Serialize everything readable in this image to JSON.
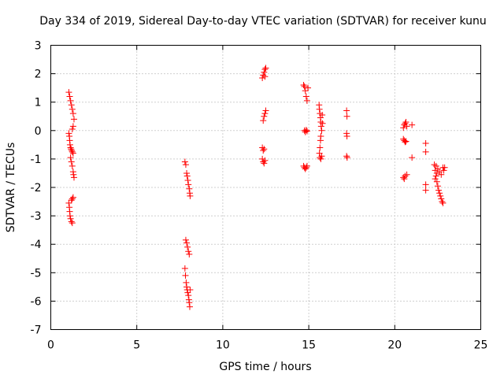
{
  "chart_data": {
    "type": "scatter",
    "title": "Day 334 of 2019, Sidereal Day-to-day VTEC variation (SDTVAR) for receiver kunu",
    "xlabel": "GPS time / hours",
    "ylabel": "SDTVAR / TECUs",
    "xlim": [
      0,
      25
    ],
    "ylim": [
      -7,
      3
    ],
    "xticks": [
      0,
      5,
      10,
      15,
      20,
      25
    ],
    "yticks": [
      -7,
      -6,
      -5,
      -4,
      -3,
      -2,
      -1,
      0,
      1,
      2,
      3
    ],
    "xtick_labels": [
      "0",
      "5",
      "10",
      "15",
      "20",
      "25"
    ],
    "ytick_labels": [
      "-7",
      "-6",
      "-5",
      "-4",
      "-3",
      "-2",
      "-1",
      "0",
      "1",
      "2",
      "3"
    ],
    "grid": true,
    "marker": "+",
    "marker_color": "#ff0000",
    "series": [
      {
        "name": "SDTVAR",
        "points": [
          [
            1.05,
            -0.1
          ],
          [
            1.08,
            -0.2
          ],
          [
            1.1,
            -0.35
          ],
          [
            1.12,
            -0.5
          ],
          [
            1.15,
            -0.6
          ],
          [
            1.18,
            -0.65
          ],
          [
            1.22,
            -0.7
          ],
          [
            1.25,
            -0.75
          ],
          [
            1.3,
            -0.8
          ],
          [
            1.05,
            1.35
          ],
          [
            1.1,
            1.2
          ],
          [
            1.15,
            1.05
          ],
          [
            1.2,
            0.9
          ],
          [
            1.25,
            0.75
          ],
          [
            1.3,
            0.6
          ],
          [
            1.35,
            0.4
          ],
          [
            1.3,
            0.15
          ],
          [
            1.25,
            0.05
          ],
          [
            1.15,
            -0.95
          ],
          [
            1.2,
            -1.1
          ],
          [
            1.25,
            -1.25
          ],
          [
            1.3,
            -1.45
          ],
          [
            1.32,
            -1.55
          ],
          [
            1.35,
            -1.65
          ],
          [
            1.05,
            -2.55
          ],
          [
            1.08,
            -2.7
          ],
          [
            1.1,
            -2.85
          ],
          [
            1.12,
            -3.0
          ],
          [
            1.15,
            -3.1
          ],
          [
            1.2,
            -3.2
          ],
          [
            1.25,
            -3.25
          ],
          [
            1.3,
            -2.35
          ],
          [
            1.25,
            -2.4
          ],
          [
            1.2,
            -2.45
          ],
          [
            7.8,
            -1.1
          ],
          [
            7.85,
            -1.2
          ],
          [
            7.9,
            -1.5
          ],
          [
            7.93,
            -1.6
          ],
          [
            7.97,
            -1.75
          ],
          [
            8.0,
            -1.9
          ],
          [
            8.05,
            -2.05
          ],
          [
            8.08,
            -2.2
          ],
          [
            8.1,
            -2.3
          ],
          [
            7.85,
            -3.85
          ],
          [
            7.9,
            -3.95
          ],
          [
            7.95,
            -4.1
          ],
          [
            8.0,
            -4.25
          ],
          [
            8.05,
            -4.35
          ],
          [
            7.8,
            -4.85
          ],
          [
            7.83,
            -5.1
          ],
          [
            7.87,
            -5.35
          ],
          [
            7.9,
            -5.5
          ],
          [
            7.93,
            -5.6
          ],
          [
            7.96,
            -5.7
          ],
          [
            8.0,
            -5.8
          ],
          [
            8.03,
            -5.95
          ],
          [
            8.05,
            -6.05
          ],
          [
            8.08,
            -6.2
          ],
          [
            8.1,
            -5.6
          ],
          [
            12.3,
            1.85
          ],
          [
            12.35,
            1.95
          ],
          [
            12.4,
            2.05
          ],
          [
            12.45,
            2.15
          ],
          [
            12.5,
            2.2
          ],
          [
            12.45,
            1.9
          ],
          [
            12.35,
            0.35
          ],
          [
            12.4,
            0.5
          ],
          [
            12.45,
            0.6
          ],
          [
            12.5,
            0.7
          ],
          [
            12.3,
            -0.6
          ],
          [
            12.35,
            -0.7
          ],
          [
            12.4,
            -0.65
          ],
          [
            12.3,
            -1.0
          ],
          [
            12.35,
            -1.1
          ],
          [
            12.4,
            -1.15
          ],
          [
            12.45,
            -1.05
          ],
          [
            14.7,
            1.6
          ],
          [
            14.75,
            1.55
          ],
          [
            14.8,
            1.4
          ],
          [
            14.85,
            1.2
          ],
          [
            14.9,
            1.05
          ],
          [
            14.95,
            1.5
          ],
          [
            14.75,
            0.0
          ],
          [
            14.8,
            -0.05
          ],
          [
            14.85,
            0.02
          ],
          [
            14.9,
            -0.02
          ],
          [
            14.7,
            -1.25
          ],
          [
            14.75,
            -1.3
          ],
          [
            14.8,
            -1.35
          ],
          [
            14.85,
            -1.3
          ],
          [
            14.9,
            -1.25
          ],
          [
            15.6,
            0.9
          ],
          [
            15.62,
            0.75
          ],
          [
            15.65,
            0.6
          ],
          [
            15.68,
            0.45
          ],
          [
            15.7,
            0.3
          ],
          [
            15.72,
            0.15
          ],
          [
            15.75,
            0.0
          ],
          [
            15.7,
            -0.2
          ],
          [
            15.68,
            -0.35
          ],
          [
            15.65,
            -0.6
          ],
          [
            15.62,
            -0.8
          ],
          [
            15.65,
            -0.95
          ],
          [
            15.7,
            -1.0
          ],
          [
            15.75,
            -0.9
          ],
          [
            15.78,
            0.55
          ],
          [
            15.8,
            0.25
          ],
          [
            17.2,
            0.7
          ],
          [
            17.22,
            0.5
          ],
          [
            17.2,
            -0.1
          ],
          [
            17.22,
            -0.2
          ],
          [
            17.2,
            -0.9
          ],
          [
            17.23,
            -0.95
          ],
          [
            20.5,
            0.1
          ],
          [
            20.55,
            0.2
          ],
          [
            20.6,
            0.25
          ],
          [
            20.65,
            0.3
          ],
          [
            20.7,
            0.15
          ],
          [
            20.5,
            -0.3
          ],
          [
            20.55,
            -0.35
          ],
          [
            20.6,
            -0.4
          ],
          [
            20.65,
            -0.38
          ],
          [
            20.5,
            -1.65
          ],
          [
            20.55,
            -1.7
          ],
          [
            20.6,
            -1.6
          ],
          [
            20.7,
            -1.55
          ],
          [
            21.0,
            0.2
          ],
          [
            21.0,
            -0.95
          ],
          [
            21.8,
            -0.45
          ],
          [
            21.8,
            -0.75
          ],
          [
            21.8,
            -1.9
          ],
          [
            21.8,
            -2.1
          ],
          [
            22.3,
            -1.2
          ],
          [
            22.35,
            -1.4
          ],
          [
            22.4,
            -1.6
          ],
          [
            22.45,
            -1.8
          ],
          [
            22.5,
            -1.95
          ],
          [
            22.55,
            -2.1
          ],
          [
            22.6,
            -2.2
          ],
          [
            22.65,
            -2.3
          ],
          [
            22.7,
            -2.4
          ],
          [
            22.75,
            -2.5
          ],
          [
            22.8,
            -2.55
          ],
          [
            22.4,
            -1.25
          ],
          [
            22.5,
            -1.35
          ],
          [
            22.6,
            -1.45
          ],
          [
            22.7,
            -1.55
          ],
          [
            22.8,
            -1.3
          ],
          [
            22.85,
            -1.4
          ],
          [
            22.9,
            -1.3
          ],
          [
            22.35,
            -1.7
          ],
          [
            22.45,
            -1.5
          ]
        ]
      }
    ]
  }
}
